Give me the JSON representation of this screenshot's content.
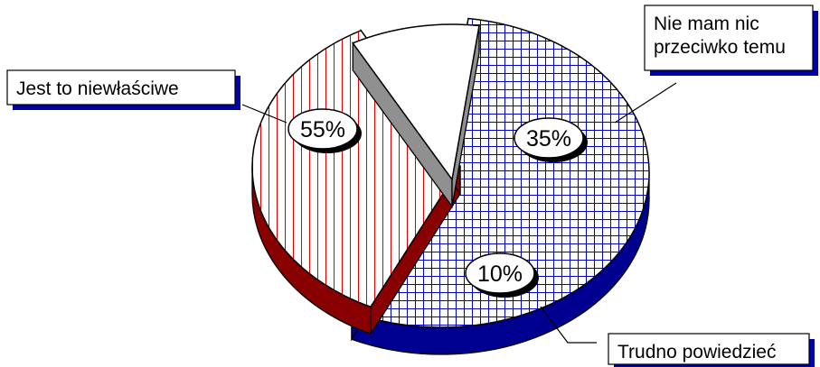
{
  "chart_data": {
    "type": "pie",
    "title": "",
    "style": "3d-exploded",
    "slices": [
      {
        "label": "Jest to niewłaściwe",
        "label_lines": [
          "Jest to niewłaściwe"
        ],
        "value": 55,
        "value_label": "55%",
        "color": "#0000a0",
        "pattern": "grid"
      },
      {
        "label": "Nie mam nic przeciwko temu",
        "label_lines": [
          "Nie mam nic",
          "przeciwko temu"
        ],
        "value": 35,
        "value_label": "35%",
        "color": "#cc0000",
        "pattern": "vertical-lines"
      },
      {
        "label": "Trudno powiedzieć",
        "label_lines": [
          "Trudno powiedzieć"
        ],
        "value": 10,
        "value_label": "10%",
        "color": "#808080",
        "pattern": "none"
      }
    ]
  }
}
